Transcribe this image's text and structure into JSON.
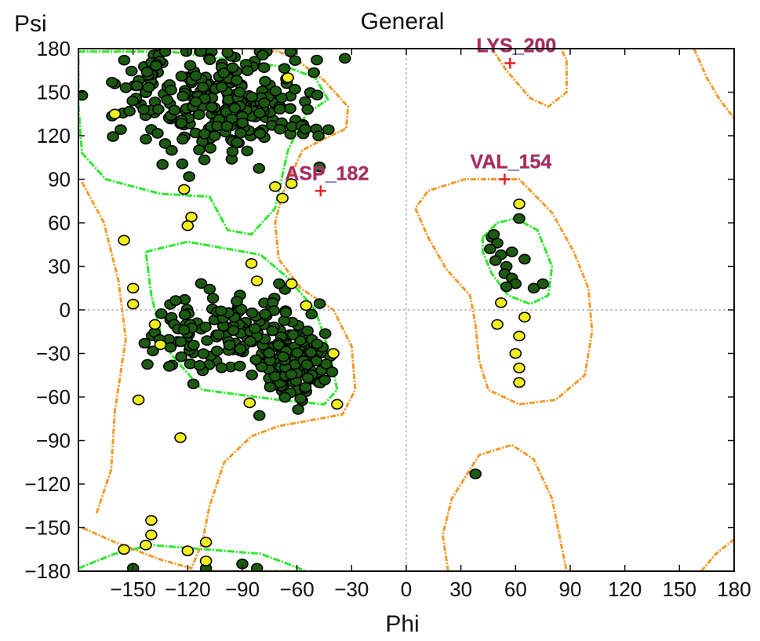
{
  "chart_data": {
    "type": "scatter",
    "title": "General",
    "xlabel": "Phi",
    "ylabel": "Psi",
    "xlim": [
      -180,
      180
    ],
    "ylim": [
      -180,
      180
    ],
    "xticks": [
      -150,
      -120,
      -90,
      -60,
      -30,
      0,
      30,
      60,
      90,
      120,
      150,
      180
    ],
    "yticks": [
      180,
      150,
      120,
      90,
      60,
      30,
      0,
      -30,
      -60,
      -90,
      -120,
      -150,
      -180
    ],
    "xtick_labels": [
      "−150",
      "−120",
      "−90",
      "−60",
      "−30",
      "0",
      "30",
      "60",
      "90",
      "120",
      "150",
      "180"
    ],
    "ytick_labels": [
      "180",
      "150",
      "120",
      "90",
      "60",
      "30",
      "0",
      "−30",
      "−60",
      "−90",
      "−120",
      "−150",
      "−180"
    ],
    "zero_lines": true,
    "colors": {
      "favoured_point": "#1c5a12",
      "allowed_point": "#f2ee1e",
      "outlier_marker": "#e8202a",
      "outlier_label": "#c8203a",
      "favoured_contour": "#2ee82e",
      "allowed_contour": "#f39a2a",
      "zero_line": "#b5b5b5"
    },
    "outliers": [
      {
        "label": "LYS_200",
        "phi": 57,
        "psi": 170
      },
      {
        "label": "VAL_154",
        "phi": 54,
        "psi": 90
      },
      {
        "label": "ASP_182",
        "phi": -47,
        "psi": 82
      }
    ],
    "allowed_points": [
      [
        -160,
        135
      ],
      [
        -65,
        160
      ],
      [
        -72,
        85
      ],
      [
        -63,
        87
      ],
      [
        -68,
        77
      ],
      [
        -122,
        83
      ],
      [
        -118,
        64
      ],
      [
        -120,
        58
      ],
      [
        -155,
        48
      ],
      [
        -150,
        15
      ],
      [
        -150,
        4
      ],
      [
        -138,
        -10
      ],
      [
        -135,
        -24
      ],
      [
        -147,
        -62
      ],
      [
        -124,
        -88
      ],
      [
        -86,
        -64
      ],
      [
        -85,
        32
      ],
      [
        -82,
        20
      ],
      [
        -63,
        18
      ],
      [
        -55,
        3
      ],
      [
        -40,
        -30
      ],
      [
        -38,
        -65
      ],
      [
        -140,
        -145
      ],
      [
        -140,
        -155
      ],
      [
        -143,
        -162
      ],
      [
        -155,
        -165
      ],
      [
        -120,
        -166
      ],
      [
        -110,
        -160
      ],
      [
        -110,
        -173
      ],
      [
        62,
        73
      ],
      [
        52,
        5
      ],
      [
        50,
        -10
      ],
      [
        65,
        -5
      ],
      [
        62,
        -18
      ],
      [
        60,
        -30
      ],
      [
        62,
        -40
      ],
      [
        62,
        -50
      ]
    ],
    "favoured_points": [
      [
        38,
        -113
      ],
      [
        47,
        50
      ],
      [
        50,
        46
      ],
      [
        46,
        42
      ],
      [
        52,
        38
      ],
      [
        49,
        34
      ],
      [
        55,
        30
      ],
      [
        54,
        25
      ],
      [
        58,
        22
      ],
      [
        60,
        18
      ],
      [
        55,
        16
      ],
      [
        65,
        35
      ],
      [
        58,
        40
      ],
      [
        70,
        15
      ],
      [
        75,
        18
      ],
      [
        62,
        63
      ],
      [
        48,
        52
      ],
      [
        -110,
        -178
      ],
      [
        -90,
        -175
      ],
      [
        -82,
        -178
      ],
      [
        -150,
        -178
      ]
    ],
    "favoured_clusters": [
      {
        "phi": -95,
        "psi": 140,
        "sd_phi": 22,
        "sd_psi": 20,
        "n": 230
      },
      {
        "phi": -140,
        "psi": 150,
        "sd_phi": 12,
        "sd_psi": 18,
        "n": 55
      },
      {
        "phi": -62,
        "psi": -38,
        "sd_phi": 10,
        "sd_psi": 12,
        "n": 170
      },
      {
        "phi": -90,
        "psi": -15,
        "sd_phi": 18,
        "sd_psi": 15,
        "n": 90
      },
      {
        "phi": -120,
        "psi": -25,
        "sd_phi": 12,
        "sd_psi": 18,
        "n": 40
      }
    ]
  }
}
